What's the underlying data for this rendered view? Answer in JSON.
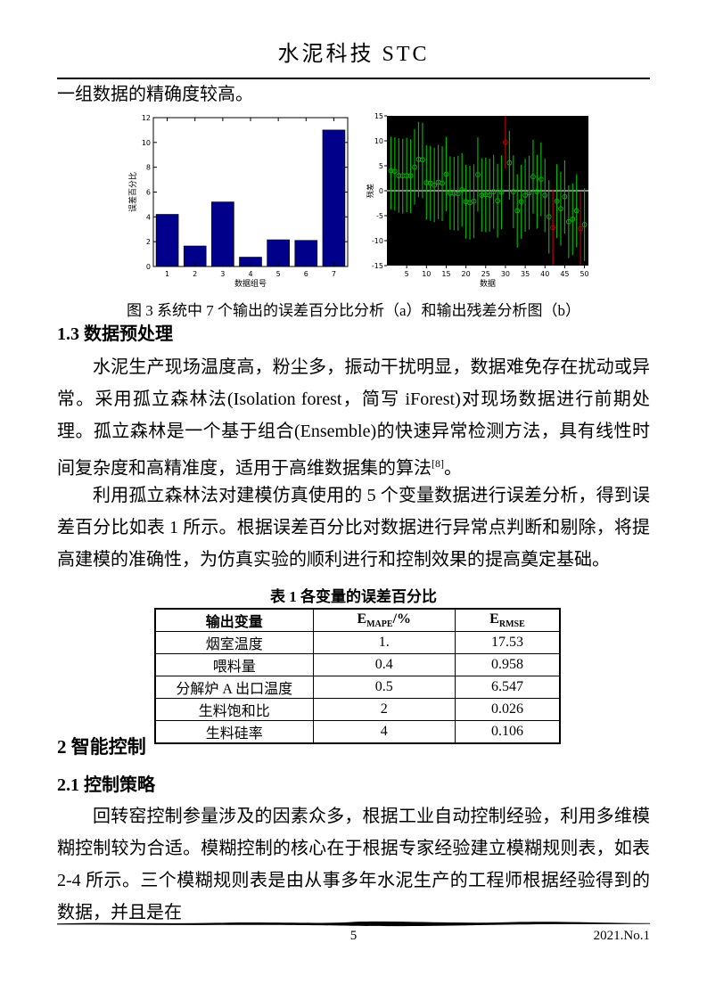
{
  "page": {
    "header_title": "水泥科技 STC",
    "intro_line": "一组数据的精确度较高。",
    "figure_caption": "图 3 系统中 7 个输出的误差百分比分析（a）和输出残差分析图（b）",
    "footer": {
      "page_number": "5",
      "issue": "2021.No.1"
    }
  },
  "sections": {
    "s13_title": "1.3 数据预处理",
    "s13_p1_text": "水泥生产现场温度高，粉尘多，振动干扰明显，数据难免存在扰动或异常。采用孤立森林法(Isolation forest，简写 iForest)对现场数据进行前期处理。孤立森林是一个基于组合(Ensemble)的快速异常检测方法，具有线性时间复杂度和高精准度，适用于高维数据集的算法",
    "s13_p1_ref": "[8]",
    "s13_p1_end": "。",
    "s13_p2": "利用孤立森林法对建模仿真使用的 5 个变量数据进行误差分析，得到误差百分比如表 1 所示。根据误差百分比对数据进行异常点判断和剔除，将提高建模的准确性，为仿真实验的顺利进行和控制效果的提高奠定基础。",
    "s2_title": "2 智能控制",
    "s21_title": "2.1 控制策略",
    "s21_p1": "回转窑控制参量涉及的因素众多，根据工业自动控制经验，利用多维模糊控制较为合适。模糊控制的核心在于根据专家经验建立模糊规则表，如表 2-4 所示。三个模糊规则表是由从事多年水泥生产的工程师根据经验得到的数据，并且是在"
  },
  "table": {
    "title": "表 1 各变量的误差百分比",
    "headers": [
      {
        "text": "输出变量"
      },
      {
        "pre": "E",
        "sub": "MAPE",
        "post": "/%"
      },
      {
        "pre": "E",
        "sub": "RMSE",
        "post": ""
      }
    ],
    "rows": [
      [
        "烟室温度",
        "1.",
        "17.53"
      ],
      [
        "喂料量",
        "0.4",
        "0.958"
      ],
      [
        "分解炉 A 出口温度",
        "0.5",
        "6.547"
      ],
      [
        "生料饱和比",
        "2",
        "0.026"
      ],
      [
        "生料硅率",
        "4",
        "0.106"
      ]
    ]
  },
  "chart_data": [
    {
      "type": "bar",
      "title": "",
      "xlabel": "数据组号",
      "ylabel": "误差百分比",
      "categories": [
        "1",
        "2",
        "3",
        "4",
        "5",
        "6",
        "7"
      ],
      "values": [
        4.2,
        1.65,
        5.2,
        0.75,
        2.15,
        2.1,
        11.0
      ],
      "ylim": [
        0,
        12
      ],
      "yticks": [
        0,
        2,
        4,
        6,
        8,
        10,
        12
      ],
      "bar_color": "#00008B",
      "plot_bg": "#ffffff",
      "grid": false,
      "legend": "none"
    },
    {
      "type": "errorbar",
      "title": "",
      "xlabel": "数据",
      "ylabel": "残差",
      "xlim": [
        0,
        51
      ],
      "ylim": [
        -15,
        15
      ],
      "xticks": [
        5,
        10,
        15,
        20,
        25,
        30,
        35,
        40,
        45,
        50
      ],
      "yticks": [
        -15,
        -10,
        -5,
        0,
        5,
        10,
        15
      ],
      "plot_bg": "#000000",
      "normal_color": "#00b400",
      "outlier_color": "#c00000",
      "zero_line_color": "#d8d8d8",
      "grid": false,
      "legend": "none",
      "x_start": 1,
      "y": [
        4.0,
        3.9,
        3.0,
        3.0,
        3.0,
        3.0,
        4.7,
        6.3,
        6.2,
        1.6,
        1.5,
        1.1,
        1.7,
        1.5,
        3.3,
        -0.5,
        -0.5,
        -0.6,
        0.2,
        -2.2,
        -2.4,
        -2.1,
        3.2,
        -0.9,
        -0.8,
        -0.9,
        -0.2,
        -2.0,
        -0.3,
        9.7,
        5.6,
        -0.2,
        -4.0,
        -2.2,
        -0.9,
        -0.4,
        2.8,
        -0.2,
        2.3,
        -0.9,
        -5.2,
        -7.4,
        -2.1,
        -3.6,
        -1.2,
        -6.2,
        -5.7,
        -4.0,
        -7.6,
        -6.8
      ],
      "lo": [
        -3.8,
        -4.0,
        -4.4,
        -4.6,
        -4.3,
        -4.5,
        -2.8,
        -1.3,
        -1.5,
        -5.8,
        -6.0,
        -6.3,
        -5.7,
        -6.1,
        -4.1,
        -7.8,
        -7.9,
        -8.0,
        -7.2,
        -9.6,
        -9.8,
        -9.5,
        -4.2,
        -8.2,
        -8.3,
        -8.2,
        -7.6,
        -9.4,
        -7.7,
        4.4,
        -1.8,
        -7.5,
        -11.4,
        -9.6,
        -8.2,
        -7.8,
        -4.6,
        -7.6,
        -5.1,
        -8.3,
        -12.6,
        -15.0,
        -9.5,
        -11.0,
        -8.6,
        -13.5,
        -12.9,
        -11.3,
        -14.9,
        -14.1
      ],
      "hi": [
        10.8,
        10.7,
        10.5,
        10.4,
        10.6,
        10.3,
        12.3,
        13.8,
        13.6,
        9.1,
        9.0,
        8.6,
        9.2,
        8.9,
        10.8,
        6.9,
        6.8,
        7.0,
        7.5,
        5.2,
        5.0,
        5.3,
        10.7,
        6.5,
        6.6,
        6.4,
        7.2,
        5.4,
        7.1,
        15.6,
        12.0,
        7.1,
        3.3,
        5.2,
        6.4,
        7.0,
        10.2,
        7.2,
        9.7,
        6.4,
        2.1,
        0.1,
        5.3,
        3.8,
        6.1,
        1.1,
        1.5,
        3.3,
        -0.3,
        0.5
      ],
      "outlier_indices": [
        30,
        42,
        49
      ]
    }
  ]
}
